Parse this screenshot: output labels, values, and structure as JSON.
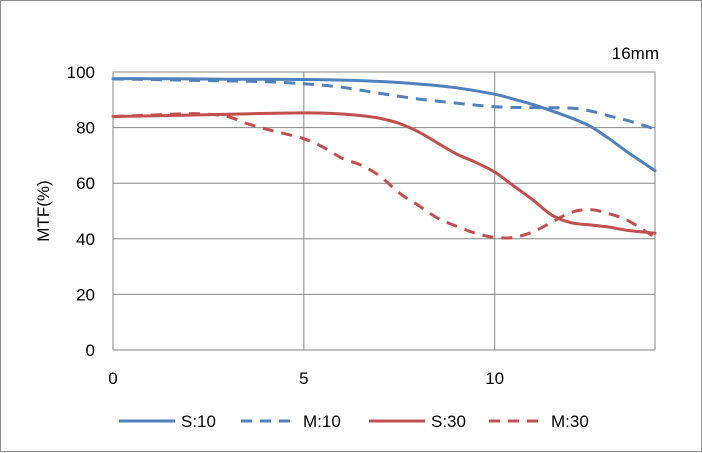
{
  "chart_data": {
    "type": "line",
    "title": "16mm",
    "xlabel": "",
    "ylabel": "MTF(%)",
    "xlim": [
      0,
      14.2
    ],
    "ylim": [
      0,
      100
    ],
    "xticks": [
      0,
      5,
      10
    ],
    "yticks": [
      0,
      20,
      40,
      60,
      80,
      100
    ],
    "grid": true,
    "legend_position": "bottom",
    "series": [
      {
        "name": "S:10",
        "color": "#4f81bd",
        "dash": "solid",
        "x": [
          0,
          1,
          2,
          3,
          4,
          5,
          6,
          7,
          8,
          9,
          10,
          10.5,
          11,
          11.5,
          12,
          12.5,
          13,
          13.5,
          14.2
        ],
        "y": [
          97.6,
          97.6,
          97.5,
          97.4,
          97.4,
          97.3,
          97.1,
          96.6,
          95.7,
          94.3,
          92.0,
          90.2,
          88.3,
          86.0,
          83.5,
          80.5,
          76.0,
          71.0,
          64.5
        ]
      },
      {
        "name": "M:10",
        "color": "#4f81bd",
        "dash": "dashed",
        "x": [
          0,
          1,
          2,
          3,
          4,
          5,
          6,
          7,
          8,
          9,
          10,
          11,
          12,
          12.5,
          13,
          13.5,
          14.2
        ],
        "y": [
          97.5,
          97.3,
          97.0,
          96.8,
          96.5,
          95.8,
          94.5,
          92.3,
          90.3,
          88.8,
          87.5,
          87.2,
          87.0,
          86.0,
          84.2,
          82.5,
          79.5
        ]
      },
      {
        "name": "S:30",
        "color": "#c0504d",
        "dash": "solid",
        "x": [
          0,
          1,
          2,
          3,
          4,
          5,
          5.5,
          6,
          6.5,
          7,
          7.5,
          8,
          8.5,
          9,
          9.5,
          10,
          10.5,
          11,
          11.5,
          12,
          12.5,
          13,
          13.5,
          14.2
        ],
        "y": [
          84.0,
          84.2,
          84.5,
          84.8,
          85.1,
          85.3,
          85.2,
          84.9,
          84.3,
          83.3,
          81.5,
          78.5,
          74.5,
          70.5,
          67.5,
          64.0,
          59.0,
          54.0,
          48.5,
          45.8,
          45.0,
          44.2,
          43.0,
          42.0
        ]
      },
      {
        "name": "M:30",
        "color": "#c0504d",
        "dash": "dashed",
        "x": [
          0,
          1,
          2,
          2.5,
          3,
          3.5,
          4,
          4.5,
          5,
          5.5,
          6,
          6.5,
          7,
          7.5,
          8,
          8.5,
          9,
          9.5,
          10,
          10.5,
          11,
          11.5,
          12,
          12.5,
          13,
          13.5,
          14.2
        ],
        "y": [
          84.0,
          84.5,
          85.0,
          84.8,
          84.0,
          81.5,
          79.5,
          77.8,
          76.0,
          73.0,
          69.0,
          66.5,
          62.5,
          56.5,
          52.0,
          47.5,
          44.5,
          42.0,
          40.5,
          40.5,
          42.5,
          46.0,
          49.5,
          50.5,
          49.0,
          46.5,
          40.5
        ]
      }
    ]
  }
}
